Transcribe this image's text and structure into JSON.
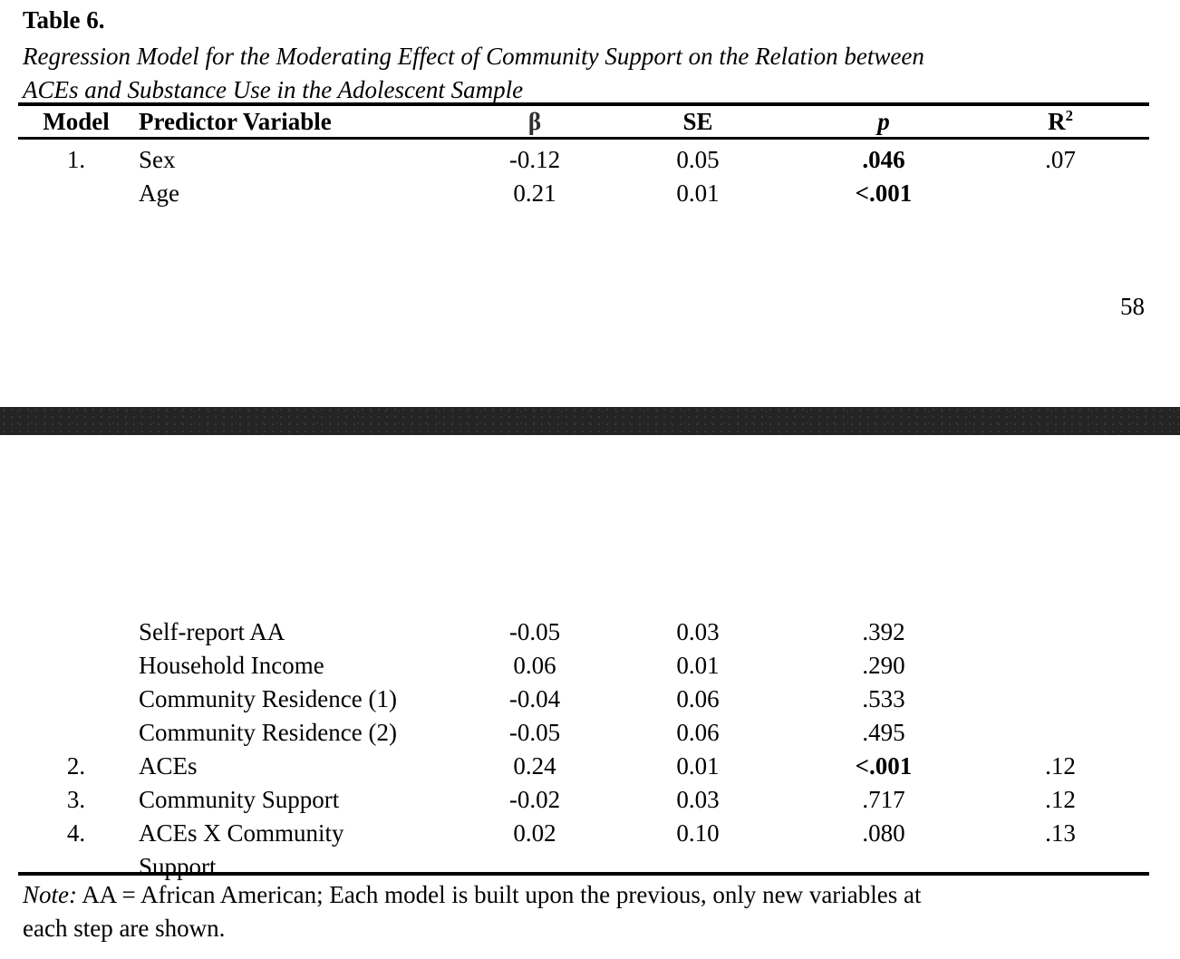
{
  "page": {
    "title": "Table 6.",
    "caption_line1": "Regression Model for the Moderating Effect of Community Support on the Relation between",
    "caption_line2": "ACEs and Substance Use in the Adolescent Sample",
    "page_number": "58"
  },
  "table": {
    "headers": {
      "model": "Model",
      "predictor": "Predictor Variable",
      "beta": "β",
      "se": "SE",
      "p": "p",
      "r2_base": "R",
      "r2_sup": "2"
    },
    "rows_page1": [
      {
        "model": "1.",
        "predictor": "Sex",
        "beta": "-0.12",
        "se": "0.05",
        "p": ".046",
        "p_bold": true,
        "r2": ".07"
      },
      {
        "model": "",
        "predictor": "Age",
        "beta": "0.21",
        "se": "0.01",
        "p": "<.001",
        "p_bold": true,
        "r2": ""
      }
    ],
    "rows_page2": [
      {
        "model": "",
        "predictor": "Self-report AA",
        "beta": "-0.05",
        "se": "0.03",
        "p": ".392",
        "p_bold": false,
        "r2": ""
      },
      {
        "model": "",
        "predictor": "Household Income",
        "beta": "0.06",
        "se": "0.01",
        "p": ".290",
        "p_bold": false,
        "r2": ""
      },
      {
        "model": "",
        "predictor": "Community Residence (1)",
        "beta": "-0.04",
        "se": "0.06",
        "p": ".533",
        "p_bold": false,
        "r2": ""
      },
      {
        "model": "",
        "predictor": "Community Residence (2)",
        "beta": "-0.05",
        "se": "0.06",
        "p": ".495",
        "p_bold": false,
        "r2": ""
      },
      {
        "model": "2.",
        "predictor": "ACEs",
        "beta": "0.24",
        "se": "0.01",
        "p": "<.001",
        "p_bold": true,
        "r2": ".12"
      },
      {
        "model": "3.",
        "predictor": "Community Support",
        "beta": "-0.02",
        "se": "0.03",
        "p": ".717",
        "p_bold": false,
        "r2": ".12"
      },
      {
        "model": "4.",
        "predictor": "ACEs X Community",
        "predictor2": "Support",
        "beta": "0.02",
        "se": "0.10",
        "p": ".080",
        "p_bold": false,
        "r2": ".13"
      }
    ]
  },
  "note": {
    "prefix": "Note:",
    "line1_rest": " AA = African American; Each model is built upon the previous, only new variables at",
    "line2": "each step are shown."
  },
  "separator": {
    "color": "#242424"
  },
  "colors": {
    "text": "#000000",
    "background": "#ffffff"
  }
}
